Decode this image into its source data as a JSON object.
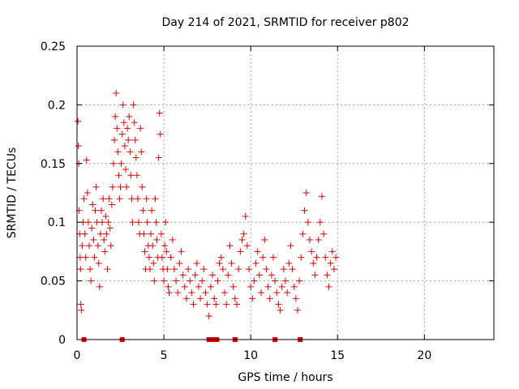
{
  "chart_data": {
    "type": "scatter",
    "title": "Day 214 of 2021, SRMTID for receiver p802",
    "xlabel": "GPS time / hours",
    "ylabel": "SRMTID / TECUs",
    "xlim": [
      0,
      24
    ],
    "ylim": [
      0,
      0.25
    ],
    "xticks": [
      0,
      5,
      10,
      15,
      20
    ],
    "xtick_labels": [
      "0",
      "5",
      "10",
      "15",
      "20"
    ],
    "yticks": [
      0,
      0.05,
      0.1,
      0.15,
      0.2,
      0.25
    ],
    "ytick_labels": [
      "0",
      "0.05",
      "0.1",
      "0.15",
      "0.2",
      "0.25"
    ],
    "grid": true,
    "marker": "+",
    "color": "#e00000",
    "series": [
      {
        "name": "SRMTID",
        "points": [
          [
            0.05,
            0.186
          ],
          [
            0.08,
            0.165
          ],
          [
            0.1,
            0.15
          ],
          [
            0.12,
            0.11
          ],
          [
            0.15,
            0.09
          ],
          [
            0.18,
            0.07
          ],
          [
            0.2,
            0.06
          ],
          [
            0.22,
            0.03
          ],
          [
            0.25,
            0.025
          ],
          [
            0.3,
            0.08
          ],
          [
            0.35,
            0.1
          ],
          [
            0.4,
            0.12
          ],
          [
            0.45,
            0.09
          ],
          [
            0.5,
            0.07
          ],
          [
            0.55,
            0.153
          ],
          [
            0.6,
            0.125
          ],
          [
            0.65,
            0.1
          ],
          [
            0.7,
            0.08
          ],
          [
            0.75,
            0.06
          ],
          [
            0.8,
            0.05
          ],
          [
            0.85,
            0.095
          ],
          [
            0.9,
            0.115
          ],
          [
            0.95,
            0.085
          ],
          [
            1.0,
            0.07
          ],
          [
            1.05,
            0.11
          ],
          [
            1.1,
            0.13
          ],
          [
            1.15,
            0.1
          ],
          [
            1.2,
            0.08
          ],
          [
            1.25,
            0.065
          ],
          [
            1.3,
            0.045
          ],
          [
            1.35,
            0.09
          ],
          [
            1.4,
            0.11
          ],
          [
            1.45,
            0.1
          ],
          [
            1.5,
            0.12
          ],
          [
            1.55,
            0.085
          ],
          [
            1.6,
            0.075
          ],
          [
            1.65,
            0.105
          ],
          [
            1.7,
            0.09
          ],
          [
            1.75,
            0.06
          ],
          [
            1.8,
            0.1
          ],
          [
            1.85,
            0.12
          ],
          [
            1.9,
            0.095
          ],
          [
            1.95,
            0.08
          ],
          [
            2.0,
            0.115
          ],
          [
            2.05,
            0.13
          ],
          [
            2.1,
            0.15
          ],
          [
            2.15,
            0.17
          ],
          [
            2.2,
            0.19
          ],
          [
            2.25,
            0.21
          ],
          [
            2.3,
            0.18
          ],
          [
            2.35,
            0.16
          ],
          [
            2.4,
            0.14
          ],
          [
            2.45,
            0.12
          ],
          [
            2.5,
            0.13
          ],
          [
            2.55,
            0.15
          ],
          [
            2.6,
            0.175
          ],
          [
            2.65,
            0.2
          ],
          [
            2.7,
            0.185
          ],
          [
            2.75,
            0.165
          ],
          [
            2.8,
            0.145
          ],
          [
            2.85,
            0.13
          ],
          [
            2.9,
            0.18
          ],
          [
            2.95,
            0.17
          ],
          [
            3.0,
            0.19
          ],
          [
            3.05,
            0.16
          ],
          [
            3.1,
            0.14
          ],
          [
            3.15,
            0.12
          ],
          [
            3.2,
            0.1
          ],
          [
            3.25,
            0.2
          ],
          [
            3.3,
            0.185
          ],
          [
            3.35,
            0.17
          ],
          [
            3.4,
            0.155
          ],
          [
            3.45,
            0.14
          ],
          [
            3.5,
            0.12
          ],
          [
            3.55,
            0.1
          ],
          [
            3.6,
            0.09
          ],
          [
            3.65,
            0.18
          ],
          [
            3.7,
            0.16
          ],
          [
            3.75,
            0.13
          ],
          [
            3.8,
            0.11
          ],
          [
            3.85,
            0.09
          ],
          [
            3.9,
            0.075
          ],
          [
            3.95,
            0.06
          ],
          [
            4.0,
            0.12
          ],
          [
            4.05,
            0.1
          ],
          [
            4.1,
            0.08
          ],
          [
            4.15,
            0.07
          ],
          [
            4.2,
            0.06
          ],
          [
            4.25,
            0.09
          ],
          [
            4.3,
            0.11
          ],
          [
            4.35,
            0.08
          ],
          [
            4.4,
            0.065
          ],
          [
            4.45,
            0.05
          ],
          [
            4.5,
            0.12
          ],
          [
            4.55,
            0.1
          ],
          [
            4.6,
            0.085
          ],
          [
            4.65,
            0.07
          ],
          [
            4.7,
            0.155
          ],
          [
            4.75,
            0.193
          ],
          [
            4.8,
            0.175
          ],
          [
            4.85,
            0.09
          ],
          [
            4.9,
            0.07
          ],
          [
            4.95,
            0.06
          ],
          [
            5.0,
            0.05
          ],
          [
            5.05,
            0.08
          ],
          [
            5.1,
            0.1
          ],
          [
            5.15,
            0.075
          ],
          [
            5.2,
            0.06
          ],
          [
            5.25,
            0.045
          ],
          [
            5.3,
            0.04
          ],
          [
            5.4,
            0.07
          ],
          [
            5.5,
            0.085
          ],
          [
            5.6,
            0.06
          ],
          [
            5.7,
            0.05
          ],
          [
            5.8,
            0.04
          ],
          [
            5.9,
            0.065
          ],
          [
            6.0,
            0.075
          ],
          [
            6.1,
            0.055
          ],
          [
            6.2,
            0.045
          ],
          [
            6.3,
            0.035
          ],
          [
            6.4,
            0.06
          ],
          [
            6.5,
            0.05
          ],
          [
            6.6,
            0.04
          ],
          [
            6.7,
            0.03
          ],
          [
            6.8,
            0.055
          ],
          [
            6.9,
            0.065
          ],
          [
            7.0,
            0.045
          ],
          [
            7.1,
            0.035
          ],
          [
            7.2,
            0.05
          ],
          [
            7.3,
            0.06
          ],
          [
            7.4,
            0.04
          ],
          [
            7.5,
            0.03
          ],
          [
            7.6,
            0.02
          ],
          [
            7.7,
            0.045
          ],
          [
            7.8,
            0.055
          ],
          [
            7.9,
            0.035
          ],
          [
            8.0,
            0.03
          ],
          [
            8.1,
            0.05
          ],
          [
            8.2,
            0.065
          ],
          [
            8.3,
            0.07
          ],
          [
            8.4,
            0.06
          ],
          [
            8.5,
            0.04
          ],
          [
            8.6,
            0.03
          ],
          [
            8.7,
            0.055
          ],
          [
            8.8,
            0.08
          ],
          [
            8.9,
            0.065
          ],
          [
            9.0,
            0.045
          ],
          [
            9.1,
            0.035
          ],
          [
            9.2,
            0.03
          ],
          [
            9.3,
            0.06
          ],
          [
            9.4,
            0.075
          ],
          [
            9.5,
            0.085
          ],
          [
            9.6,
            0.09
          ],
          [
            9.7,
            0.105
          ],
          [
            9.8,
            0.08
          ],
          [
            9.9,
            0.06
          ],
          [
            10.0,
            0.045
          ],
          [
            10.1,
            0.035
          ],
          [
            10.2,
            0.05
          ],
          [
            10.3,
            0.065
          ],
          [
            10.4,
            0.075
          ],
          [
            10.5,
            0.055
          ],
          [
            10.6,
            0.04
          ],
          [
            10.7,
            0.07
          ],
          [
            10.8,
            0.085
          ],
          [
            10.9,
            0.06
          ],
          [
            11.0,
            0.045
          ],
          [
            11.1,
            0.035
          ],
          [
            11.2,
            0.055
          ],
          [
            11.3,
            0.07
          ],
          [
            11.4,
            0.05
          ],
          [
            11.5,
            0.04
          ],
          [
            11.6,
            0.03
          ],
          [
            11.7,
            0.025
          ],
          [
            11.8,
            0.045
          ],
          [
            11.9,
            0.06
          ],
          [
            12.0,
            0.05
          ],
          [
            12.1,
            0.04
          ],
          [
            12.2,
            0.065
          ],
          [
            12.3,
            0.08
          ],
          [
            12.4,
            0.06
          ],
          [
            12.5,
            0.045
          ],
          [
            12.6,
            0.035
          ],
          [
            12.7,
            0.025
          ],
          [
            12.8,
            0.05
          ],
          [
            12.9,
            0.07
          ],
          [
            13.0,
            0.09
          ],
          [
            13.1,
            0.11
          ],
          [
            13.2,
            0.125
          ],
          [
            13.3,
            0.1
          ],
          [
            13.4,
            0.085
          ],
          [
            13.5,
            0.075
          ],
          [
            13.6,
            0.065
          ],
          [
            13.7,
            0.055
          ],
          [
            13.8,
            0.07
          ],
          [
            13.9,
            0.085
          ],
          [
            14.0,
            0.1
          ],
          [
            14.1,
            0.122
          ],
          [
            14.2,
            0.09
          ],
          [
            14.3,
            0.07
          ],
          [
            14.4,
            0.055
          ],
          [
            14.5,
            0.045
          ],
          [
            14.6,
            0.065
          ],
          [
            14.7,
            0.075
          ],
          [
            14.8,
            0.06
          ],
          [
            14.9,
            0.07
          ]
        ]
      }
    ],
    "zero_values_at": [
      0.4,
      2.6,
      7.6,
      7.85,
      8.05,
      9.1,
      11.4,
      12.85
    ]
  }
}
